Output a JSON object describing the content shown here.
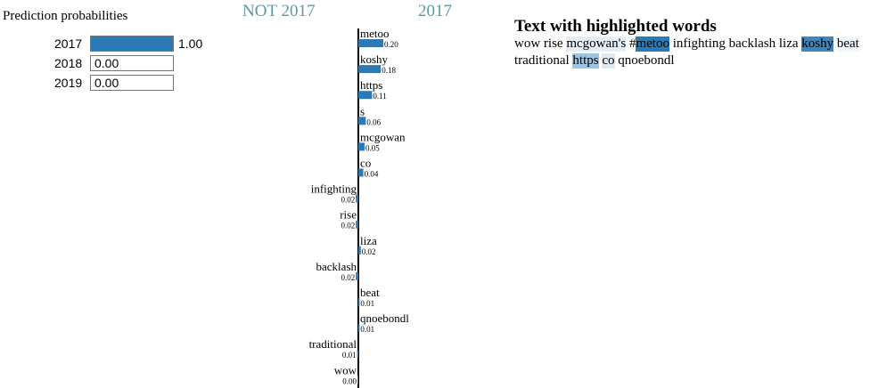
{
  "prediction": {
    "title": "Prediction probabilities",
    "rows": [
      {
        "label": "2017",
        "value": 1.0,
        "text": "1.00"
      },
      {
        "label": "2018",
        "value": 0.0,
        "text": "0.00"
      },
      {
        "label": "2019",
        "value": 0.0,
        "text": "0.00"
      }
    ],
    "color": "#2a7ab5"
  },
  "explanation": {
    "negative_label": "NOT 2017",
    "positive_label": "2017",
    "header_color": "#5b99a6",
    "bar_color": "#2a7ab5"
  },
  "chart_data": {
    "type": "bar",
    "orientation": "horizontal",
    "title": "",
    "categories": [
      "metoo",
      "koshy",
      "https",
      "s",
      "mcgowan",
      "co",
      "infighting",
      "rise",
      "liza",
      "backlash",
      "beat",
      "qnoebondl",
      "traditional",
      "wow"
    ],
    "values": [
      0.2,
      0.18,
      0.11,
      0.06,
      0.05,
      0.04,
      -0.02,
      -0.02,
      0.02,
      -0.02,
      0.01,
      0.01,
      -0.01,
      0.0
    ],
    "value_labels": [
      "0.20",
      "0.18",
      "0.11",
      "0.06",
      "0.05",
      "0.04",
      "0.02",
      "0.02",
      "0.02",
      "0.02",
      "0.01",
      "0.01",
      "0.01",
      "0.00"
    ],
    "sides": [
      "2017",
      "2017",
      "2017",
      "2017",
      "2017",
      "2017",
      "NOT 2017",
      "NOT 2017",
      "2017",
      "NOT 2017",
      "2017",
      "2017",
      "NOT 2017",
      "NOT 2017"
    ]
  },
  "highlighted_text": {
    "title": "Text with highlighted words",
    "tokens": [
      {
        "text": "wow",
        "bg": ""
      },
      {
        "text": "rise",
        "bg": ""
      },
      {
        "text": "mcgowan's",
        "bg": "#e3eef6"
      },
      {
        "text": "#",
        "bg": "",
        "nospace": true
      },
      {
        "text": "metoo",
        "bg": "#2a7ab5"
      },
      {
        "text": "infighting",
        "bg": ""
      },
      {
        "text": "backlash",
        "bg": ""
      },
      {
        "text": "liza",
        "bg": ""
      },
      {
        "text": "koshy",
        "bg": "#3f86bd"
      },
      {
        "text": "beat",
        "bg": "#f0f6fb"
      },
      {
        "text": "traditional",
        "bg": ""
      },
      {
        "text": "https",
        "bg": "#9fc4e0"
      },
      {
        "text": "co",
        "bg": "#dde9f3"
      },
      {
        "text": "qnoebondl",
        "bg": ""
      }
    ]
  }
}
